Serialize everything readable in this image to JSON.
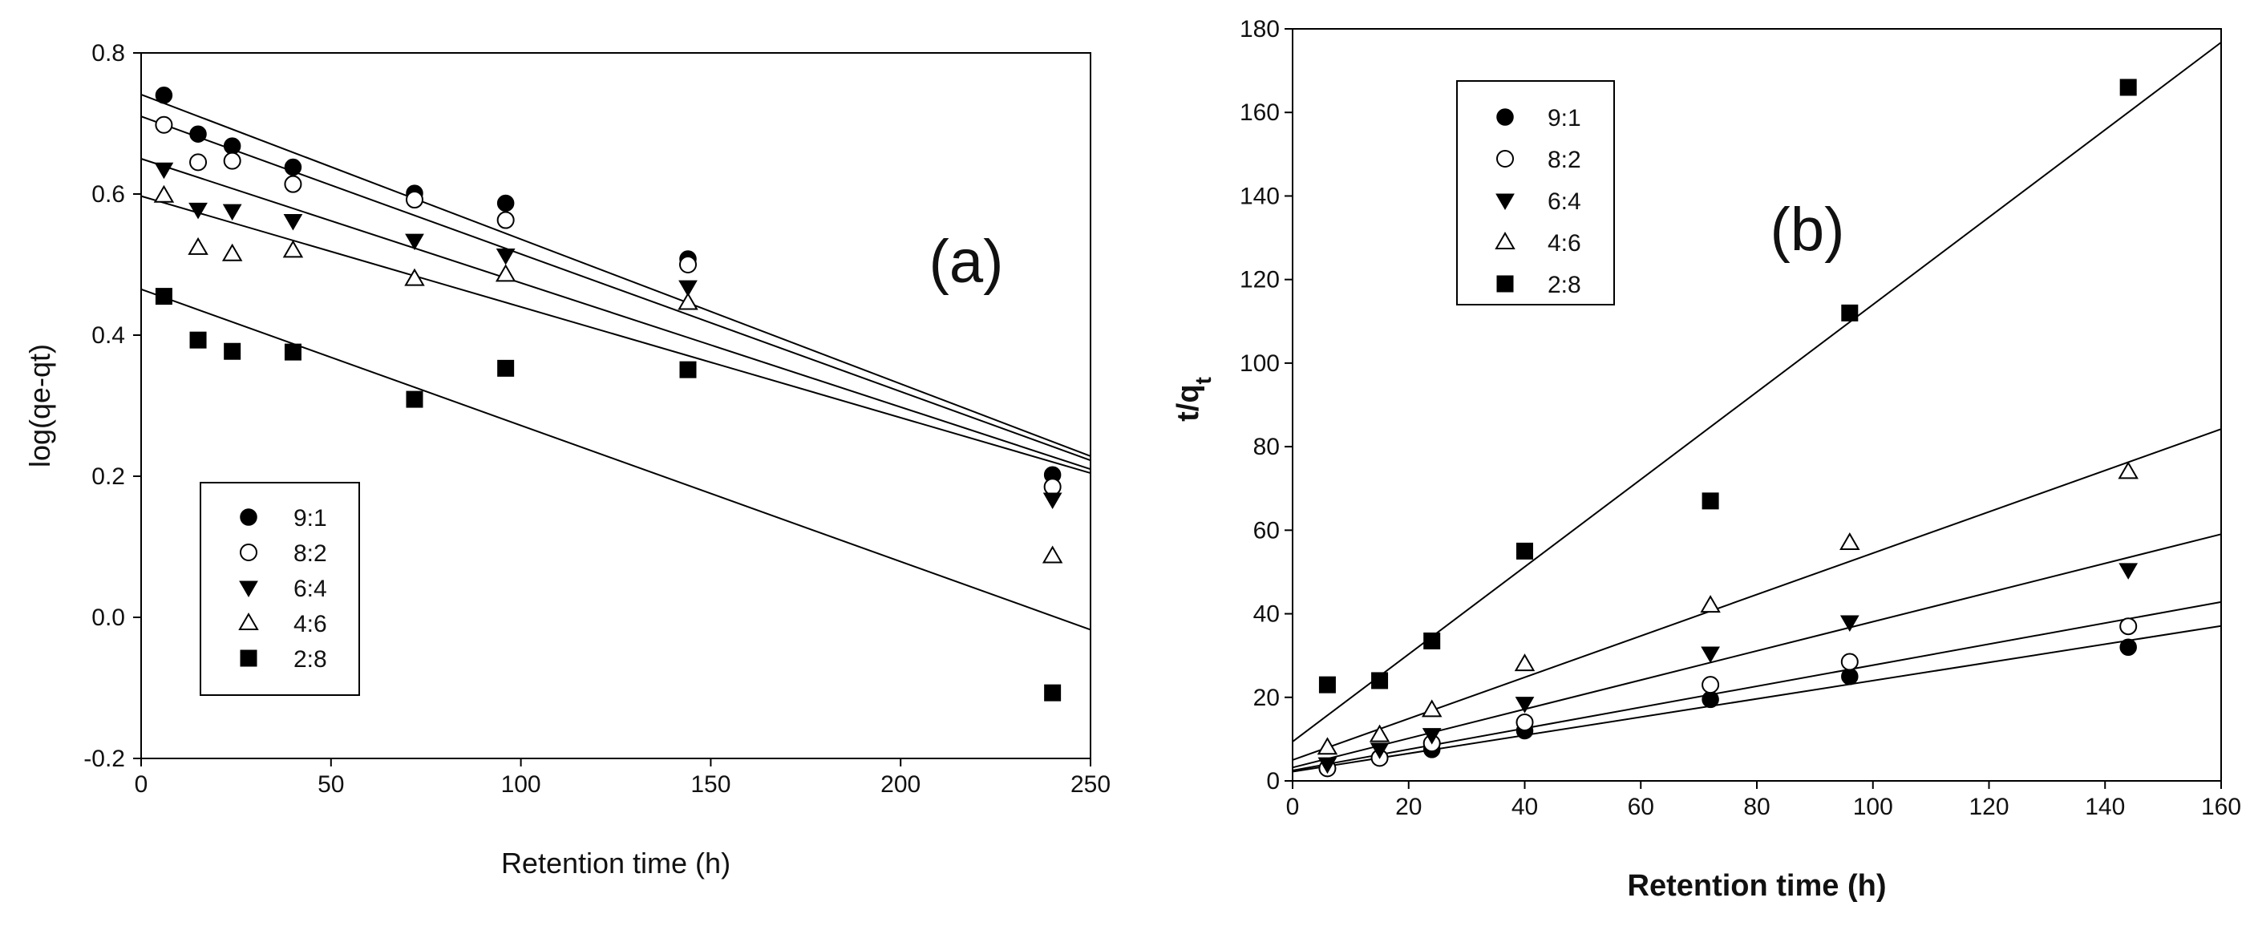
{
  "chart_data": [
    {
      "type": "scatter",
      "panel_label": "(a)",
      "xlabel": "Retention time (h)",
      "ylabel": "log(qe-qt)",
      "xlim": [
        0,
        250
      ],
      "ylim": [
        -0.2,
        0.8
      ],
      "xticks": [
        0,
        50,
        100,
        150,
        200,
        250
      ],
      "yticks": [
        -0.2,
        0.0,
        0.2,
        0.4,
        0.6,
        0.8
      ],
      "xtick_labels": [
        "0",
        "50",
        "100",
        "150",
        "200",
        "250"
      ],
      "ytick_labels": [
        "-0.2",
        "0.0",
        "0.2",
        "0.4",
        "0.6",
        "0.8"
      ],
      "legend_position": "bottom-left",
      "series": [
        {
          "name": "9:1",
          "marker": "filled-circle",
          "x": [
            6,
            15,
            24,
            40,
            72,
            96,
            144,
            240
          ],
          "y": [
            0.74,
            0.685,
            0.668,
            0.638,
            0.601,
            0.587,
            0.508,
            0.202
          ],
          "fit": [
            0.741,
            -0.00205
          ]
        },
        {
          "name": "8:2",
          "marker": "open-circle",
          "x": [
            6,
            15,
            24,
            40,
            72,
            96,
            144,
            240
          ],
          "y": [
            0.698,
            0.645,
            0.647,
            0.614,
            0.592,
            0.563,
            0.5,
            0.185
          ],
          "fit": [
            0.71,
            -0.00195
          ]
        },
        {
          "name": "6:4",
          "marker": "filled-triangle-down",
          "x": [
            6,
            15,
            24,
            40,
            72,
            96,
            144,
            240
          ],
          "y": [
            0.635,
            0.578,
            0.576,
            0.562,
            0.534,
            0.513,
            0.468,
            0.167
          ],
          "fit": [
            0.65,
            -0.00176
          ]
        },
        {
          "name": "4:6",
          "marker": "open-triangle-up",
          "x": [
            6,
            15,
            24,
            40,
            72,
            96,
            144,
            240
          ],
          "y": [
            0.598,
            0.524,
            0.515,
            0.52,
            0.48,
            0.486,
            0.446,
            0.087
          ],
          "fit": [
            0.597,
            -0.00157
          ]
        },
        {
          "name": "2:8",
          "marker": "filled-square",
          "x": [
            6,
            15,
            24,
            40,
            72,
            96,
            144,
            240
          ],
          "y": [
            0.455,
            0.393,
            0.377,
            0.376,
            0.309,
            0.353,
            0.351,
            -0.107
          ],
          "fit": [
            0.465,
            -0.00193
          ]
        }
      ]
    },
    {
      "type": "scatter",
      "panel_label": "(b)",
      "xlabel": "Retention time (h)",
      "ylabel": "t/q",
      "ylabel_subscript": "t",
      "xlim": [
        0,
        160
      ],
      "ylim": [
        0,
        180
      ],
      "xticks": [
        0,
        20,
        40,
        60,
        80,
        100,
        120,
        140,
        160
      ],
      "yticks": [
        0,
        20,
        40,
        60,
        80,
        100,
        120,
        140,
        160,
        180
      ],
      "xtick_labels": [
        "0",
        "20",
        "40",
        "60",
        "80",
        "100",
        "120",
        "140",
        "160"
      ],
      "ytick_labels": [
        "0",
        "20",
        "40",
        "60",
        "80",
        "100",
        "120",
        "140",
        "160",
        "180"
      ],
      "legend_position": "top-left",
      "series": [
        {
          "name": "9:1",
          "marker": "filled-circle",
          "x": [
            6,
            15,
            24,
            40,
            72,
            96,
            144
          ],
          "y": [
            3,
            5.5,
            7.5,
            12,
            19.5,
            25,
            32
          ],
          "fit": [
            2.2,
            0.218
          ]
        },
        {
          "name": "8:2",
          "marker": "open-circle",
          "x": [
            6,
            15,
            24,
            40,
            72,
            96,
            144
          ],
          "y": [
            3,
            5.5,
            9,
            14,
            23,
            28.5,
            37
          ],
          "fit": [
            2.5,
            0.252
          ]
        },
        {
          "name": "6:4",
          "marker": "filled-triangle-down",
          "x": [
            6,
            15,
            24,
            40,
            72,
            96,
            144
          ],
          "y": [
            4,
            7.5,
            11,
            18.5,
            30.5,
            38,
            50.5
          ],
          "fit": [
            3.2,
            0.349
          ]
        },
        {
          "name": "4:6",
          "marker": "open-triangle-up",
          "x": [
            6,
            15,
            24,
            40,
            72,
            96,
            144
          ],
          "y": [
            8,
            11,
            17,
            28,
            42,
            57,
            74
          ],
          "fit": [
            5.0,
            0.495
          ]
        },
        {
          "name": "2:8",
          "marker": "filled-square",
          "x": [
            6,
            15,
            24,
            40,
            72,
            96,
            144
          ],
          "y": [
            23,
            24,
            33.5,
            55,
            67,
            112,
            166
          ],
          "fit": [
            9.4,
            1.046
          ]
        }
      ]
    }
  ]
}
